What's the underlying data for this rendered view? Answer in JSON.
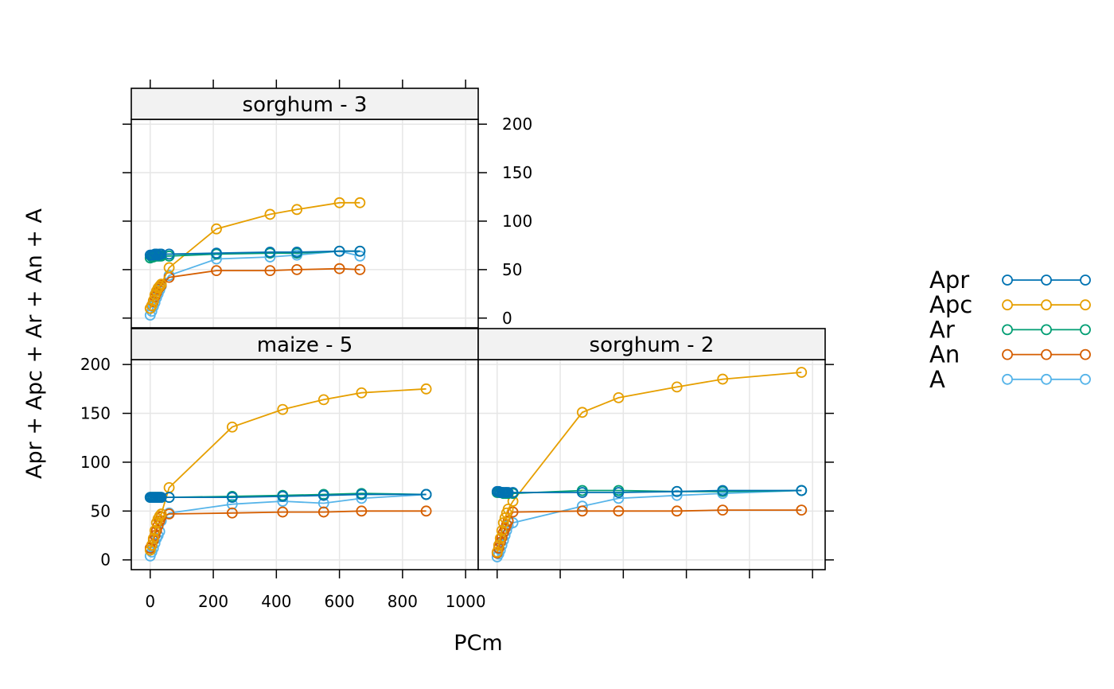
{
  "chart_data": {
    "type": "line",
    "xlabel": "PCm",
    "ylabel": "Apr + Apc + Ar + An + A",
    "xlim": [
      -60,
      1040
    ],
    "ylim": [
      -10,
      205
    ],
    "x_ticks": [
      0,
      200,
      400,
      600,
      800,
      1000
    ],
    "y_ticks": [
      0,
      50,
      100,
      150,
      200
    ],
    "grid": true,
    "legend_position": "right",
    "legend": [
      "Apr",
      "Apc",
      "Ar",
      "An",
      "A"
    ],
    "colors": {
      "Apr": "#0072B2",
      "Apc": "#E69F00",
      "Ar": "#009E73",
      "An": "#D55E00",
      "A": "#56B4E9"
    },
    "panels": [
      {
        "strip": "sorghum - 3",
        "series": [
          {
            "name": "Apr",
            "x": [
              0,
              5,
              10,
              15,
              20,
              25,
              30,
              35,
              60,
              210,
              380,
              465,
              600,
              665
            ],
            "y": [
              65,
              65,
              65,
              66,
              66,
              65,
              66,
              66,
              66,
              67,
              68,
              68,
              69,
              69
            ]
          },
          {
            "name": "Apc",
            "x": [
              0,
              5,
              10,
              15,
              20,
              25,
              30,
              35,
              60,
              210,
              380,
              465,
              600,
              665
            ],
            "y": [
              10,
              13,
              18,
              24,
              28,
              31,
              33,
              35,
              52,
              92,
              107,
              112,
              119,
              119
            ]
          },
          {
            "name": "Ar",
            "x": [
              0,
              5,
              10,
              15,
              20,
              25,
              30,
              35,
              60,
              210,
              380,
              465,
              600,
              665
            ],
            "y": [
              62,
              63,
              63,
              64,
              64,
              64,
              64,
              64,
              64,
              66,
              67,
              67,
              69,
              69
            ]
          },
          {
            "name": "An",
            "x": [
              0,
              5,
              10,
              15,
              20,
              25,
              30,
              35,
              60,
              210,
              380,
              465,
              600,
              665
            ],
            "y": [
              10,
              13,
              17,
              22,
              26,
              30,
              32,
              34,
              42,
              49,
              49,
              50,
              51,
              50
            ]
          },
          {
            "name": "A",
            "x": [
              0,
              5,
              10,
              15,
              20,
              25,
              30,
              35,
              60,
              210,
              380,
              465,
              600,
              665
            ],
            "y": [
              3,
              7,
              12,
              16,
              21,
              25,
              29,
              33,
              44,
              61,
              63,
              65,
              69,
              64
            ]
          }
        ]
      },
      {
        "strip": "maize - 5",
        "series": [
          {
            "name": "Apr",
            "x": [
              0,
              5,
              10,
              15,
              20,
              25,
              30,
              35,
              60,
              260,
              420,
              550,
              670,
              875
            ],
            "y": [
              64,
              64,
              64,
              64,
              64,
              64,
              64,
              64,
              64,
              64,
              65,
              66,
              67,
              67
            ]
          },
          {
            "name": "Apc",
            "x": [
              0,
              5,
              10,
              15,
              20,
              25,
              30,
              35,
              60,
              260,
              420,
              550,
              670,
              875
            ],
            "y": [
              10,
              15,
              22,
              30,
              38,
              42,
              45,
              47,
              74,
              136,
              154,
              164,
              171,
              175
            ]
          },
          {
            "name": "Ar",
            "x": [
              0,
              5,
              10,
              15,
              20,
              25,
              30,
              35,
              60,
              260,
              420,
              550,
              670,
              875
            ],
            "y": [
              64,
              64,
              64,
              64,
              64,
              64,
              64,
              64,
              64,
              65,
              66,
              67,
              68,
              67
            ]
          },
          {
            "name": "An",
            "x": [
              0,
              5,
              10,
              15,
              20,
              25,
              30,
              35,
              60,
              260,
              420,
              550,
              670,
              875
            ],
            "y": [
              12,
              15,
              20,
              25,
              30,
              35,
              40,
              44,
              47,
              48,
              49,
              49,
              50,
              50
            ]
          },
          {
            "name": "A",
            "x": [
              0,
              5,
              10,
              15,
              20,
              25,
              30,
              35,
              60,
              260,
              420,
              550,
              670,
              875
            ],
            "y": [
              4,
              8,
              12,
              17,
              22,
              25,
              29,
              40,
              48,
              57,
              60,
              58,
              63,
              67
            ]
          }
        ]
      },
      {
        "strip": "sorghum - 2",
        "series": [
          {
            "name": "Apr",
            "x": [
              0,
              5,
              10,
              15,
              20,
              25,
              30,
              35,
              50,
              270,
              385,
              570,
              715,
              965
            ],
            "y": [
              70,
              70,
              69,
              69,
              69,
              69,
              69,
              69,
              69,
              69,
              69,
              70,
              71,
              71
            ]
          },
          {
            "name": "Apc",
            "x": [
              0,
              5,
              10,
              15,
              20,
              25,
              30,
              35,
              50,
              270,
              385,
              570,
              715,
              965
            ],
            "y": [
              8,
              15,
              22,
              30,
              38,
              43,
              48,
              52,
              60,
              151,
              166,
              177,
              185,
              192
            ]
          },
          {
            "name": "Ar",
            "x": [
              0,
              5,
              10,
              15,
              20,
              25,
              30,
              35,
              50,
              270,
              385,
              570,
              715,
              965
            ],
            "y": [
              69,
              69,
              69,
              69,
              68,
              68,
              68,
              68,
              68,
              71,
              71,
              70,
              70,
              71
            ]
          },
          {
            "name": "An",
            "x": [
              0,
              5,
              10,
              15,
              20,
              25,
              30,
              35,
              50,
              270,
              385,
              570,
              715,
              965
            ],
            "y": [
              7,
              12,
              18,
              23,
              28,
              32,
              36,
              40,
              49,
              50,
              50,
              50,
              51,
              51
            ]
          },
          {
            "name": "A",
            "x": [
              0,
              5,
              10,
              15,
              20,
              25,
              30,
              35,
              50,
              270,
              385,
              570,
              715,
              965
            ],
            "y": [
              3,
              6,
              10,
              15,
              20,
              25,
              30,
              35,
              38,
              55,
              63,
              66,
              68,
              71
            ]
          }
        ]
      }
    ]
  }
}
